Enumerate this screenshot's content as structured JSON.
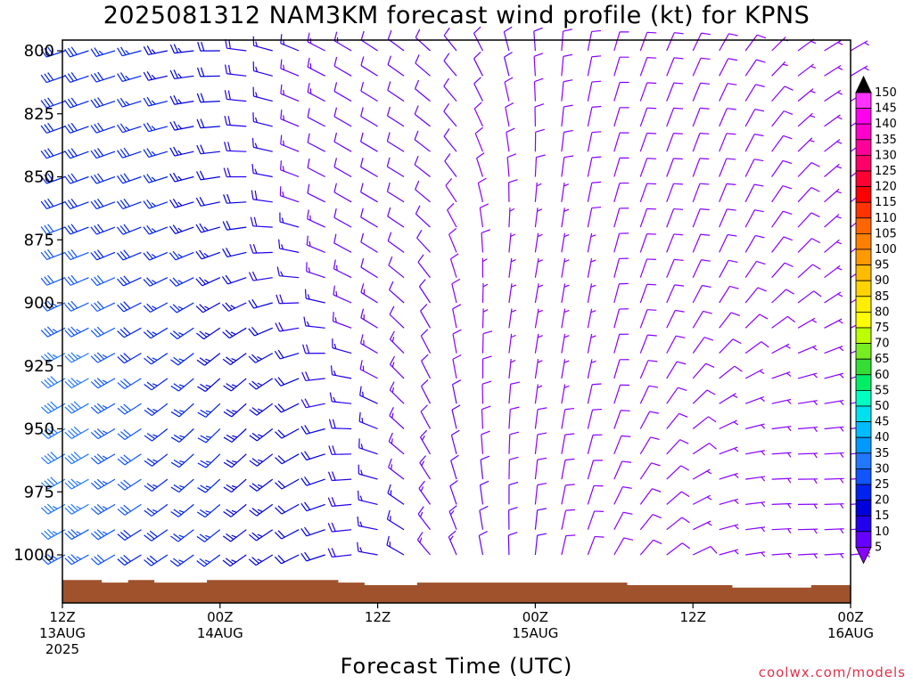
{
  "title": "2025081312 NAM3KM forecast wind profile (kt) for KPNS",
  "xlabel": "Forecast Time (UTC)",
  "credit": "coolwx.com/models",
  "chart_data": {
    "type": "wind-barb-profile",
    "units": "kt",
    "y_axis": {
      "quantity": "pressure (hPa)",
      "range": [
        1000,
        800
      ],
      "inverted": true,
      "ticks": [
        800,
        825,
        850,
        875,
        900,
        925,
        950,
        975,
        1000
      ]
    },
    "x_axis": {
      "range_hours": [
        0,
        60
      ],
      "ticks": [
        {
          "hour": 0,
          "lines": [
            "12Z",
            "13AUG",
            "2025"
          ]
        },
        {
          "hour": 12,
          "lines": [
            "00Z",
            "14AUG"
          ]
        },
        {
          "hour": 24,
          "lines": [
            "12Z"
          ]
        },
        {
          "hour": 36,
          "lines": [
            "00Z",
            "15AUG"
          ]
        },
        {
          "hour": 48,
          "lines": [
            "12Z"
          ]
        },
        {
          "hour": 60,
          "lines": [
            "00Z",
            "16AUG"
          ]
        }
      ]
    },
    "pressure_levels": [
      1000,
      990,
      980,
      970,
      960,
      950,
      940,
      930,
      920,
      910,
      900,
      890,
      880,
      870,
      860,
      850,
      840,
      830,
      820,
      810,
      800
    ],
    "time_steps_hours": [
      0,
      2,
      4,
      6,
      8,
      10,
      12,
      14,
      16,
      18,
      20,
      22,
      24,
      26,
      28,
      30,
      32,
      34,
      36,
      38,
      40,
      42,
      44,
      46,
      48,
      50,
      52,
      54,
      56,
      58,
      60
    ],
    "wind_samples": [
      {
        "hour": 0,
        "level": 850,
        "dir_deg": 250,
        "speed_kt": 30
      },
      {
        "hour": 0,
        "level": 950,
        "dir_deg": 240,
        "speed_kt": 40
      },
      {
        "hour": 12,
        "level": 950,
        "dir_deg": 225,
        "speed_kt": 25
      },
      {
        "hour": 24,
        "level": 850,
        "dir_deg": 300,
        "speed_kt": 10
      },
      {
        "hour": 36,
        "level": 900,
        "dir_deg": 10,
        "speed_kt": 5
      },
      {
        "hour": 48,
        "level": 850,
        "dir_deg": 20,
        "speed_kt": 10
      },
      {
        "hour": 56,
        "level": 975,
        "dir_deg": 90,
        "speed_kt": 5
      },
      {
        "hour": 60,
        "level": 800,
        "dir_deg": 60,
        "speed_kt": 5
      }
    ],
    "terrain_pressure_hpa": [
      1010,
      1010,
      1011,
      1010,
      1011,
      1011,
      1010,
      1010,
      1010,
      1010,
      1010,
      1011,
      1012,
      1012,
      1011,
      1011,
      1011,
      1011,
      1011,
      1011,
      1011,
      1011,
      1012,
      1012,
      1012,
      1012,
      1013,
      1013,
      1013,
      1012,
      1012
    ],
    "terrain_color": "#a0522d",
    "colorbar": {
      "values": [
        5,
        10,
        15,
        20,
        25,
        30,
        35,
        40,
        45,
        50,
        55,
        60,
        65,
        70,
        75,
        80,
        85,
        90,
        95,
        100,
        105,
        110,
        115,
        120,
        125,
        130,
        135,
        140,
        145,
        150
      ],
      "colors": [
        "#8a00ff",
        "#6600ff",
        "#2200ee",
        "#0000dd",
        "#0022ee",
        "#1155ff",
        "#2277ff",
        "#0099ff",
        "#00bbff",
        "#00e0f0",
        "#00ffc0",
        "#00ee66",
        "#33dd33",
        "#77ee22",
        "#bbff00",
        "#ffff00",
        "#ffee00",
        "#ffd400",
        "#ffbb00",
        "#ff9900",
        "#ff8000",
        "#ff6600",
        "#ff3300",
        "#ff0000",
        "#ff0033",
        "#ff0066",
        "#ff0099",
        "#ff00cc",
        "#ff00ee",
        "#ff33ff"
      ],
      "extend": "both"
    }
  }
}
